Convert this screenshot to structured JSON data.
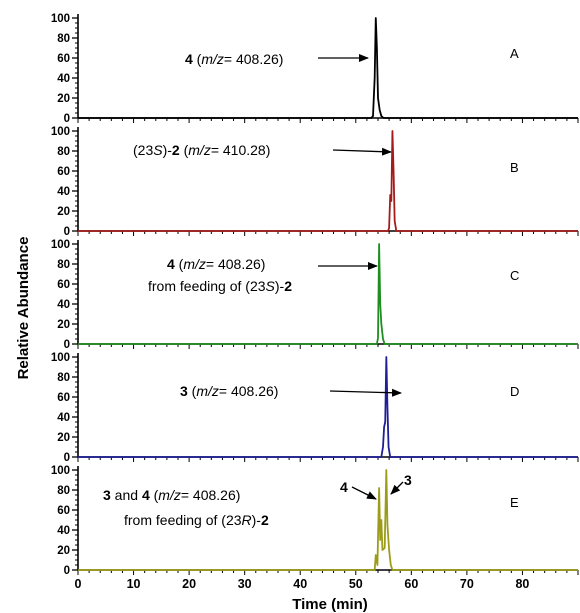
{
  "chart_data": {
    "type": "line",
    "xlabel": "Time (min)",
    "ylabel": "Relative Abundance",
    "xlim": [
      0,
      90
    ],
    "ylim": [
      0,
      100
    ],
    "x_ticks": [
      0,
      10,
      20,
      30,
      40,
      50,
      60,
      70,
      80
    ],
    "y_ticks": [
      0,
      20,
      40,
      60,
      80,
      100
    ],
    "panels": [
      {
        "letter": "A",
        "color": "#000000",
        "annotation": [
          {
            "segments": [
              {
                "t": "4",
                "bold": true
              },
              {
                "t": " ("
              },
              {
                "t": "m/z",
                "italic": true
              },
              {
                "t": "= 408.26)"
              }
            ]
          }
        ],
        "points": [
          [
            0,
            0
          ],
          [
            52.8,
            0
          ],
          [
            53.1,
            2
          ],
          [
            53.4,
            40
          ],
          [
            53.6,
            100
          ],
          [
            53.8,
            70
          ],
          [
            54.0,
            20
          ],
          [
            54.3,
            8
          ],
          [
            54.6,
            2
          ],
          [
            55.0,
            0
          ],
          [
            90,
            0
          ]
        ]
      },
      {
        "letter": "B",
        "color": "#A31B1B",
        "annotation": [
          {
            "segments": [
              {
                "t": "(23"
              },
              {
                "t": "S",
                "italic": true
              },
              {
                "t": ")-"
              },
              {
                "t": "2",
                "bold": true
              },
              {
                "t": " ("
              },
              {
                "t": "m/z",
                "italic": true
              },
              {
                "t": "= 410.28)"
              }
            ]
          }
        ],
        "points": [
          [
            0,
            0
          ],
          [
            55.8,
            0
          ],
          [
            56.0,
            3
          ],
          [
            56.2,
            36
          ],
          [
            56.4,
            30
          ],
          [
            56.6,
            100
          ],
          [
            56.8,
            60
          ],
          [
            57.0,
            10
          ],
          [
            57.3,
            0
          ],
          [
            90,
            0
          ]
        ]
      },
      {
        "letter": "C",
        "color": "#1E8E1E",
        "annotation": [
          {
            "segments": [
              {
                "t": "4",
                "bold": true
              },
              {
                "t": " ("
              },
              {
                "t": "m/z",
                "italic": true
              },
              {
                "t": "= 408.26)"
              }
            ]
          },
          {
            "segments": [
              {
                "t": "from feeding of (23"
              },
              {
                "t": "S",
                "italic": true
              },
              {
                "t": ")-"
              },
              {
                "t": "2",
                "bold": true
              }
            ]
          }
        ],
        "points": [
          [
            0,
            0
          ],
          [
            53.8,
            0
          ],
          [
            54.0,
            6
          ],
          [
            54.2,
            100
          ],
          [
            54.4,
            40
          ],
          [
            54.6,
            20
          ],
          [
            54.9,
            5
          ],
          [
            55.2,
            0
          ],
          [
            90,
            0
          ]
        ]
      },
      {
        "letter": "D",
        "color": "#1E1E96",
        "annotation": [
          {
            "segments": [
              {
                "t": "3",
                "bold": true
              },
              {
                "t": " ("
              },
              {
                "t": "m/z",
                "italic": true
              },
              {
                "t": "= 408.26)"
              }
            ]
          }
        ],
        "points": [
          [
            0,
            0
          ],
          [
            54.6,
            0
          ],
          [
            54.9,
            10
          ],
          [
            55.1,
            30
          ],
          [
            55.3,
            35
          ],
          [
            55.5,
            100
          ],
          [
            55.7,
            50
          ],
          [
            55.9,
            10
          ],
          [
            56.2,
            0
          ],
          [
            90,
            0
          ]
        ]
      },
      {
        "letter": "E",
        "color": "#9C9C1A",
        "annotation": [
          {
            "segments": [
              {
                "t": "3",
                "bold": true
              },
              {
                "t": " and "
              },
              {
                "t": "4",
                "bold": true
              },
              {
                "t": " ("
              },
              {
                "t": "m/z",
                "italic": true
              },
              {
                "t": "= 408.26)"
              }
            ]
          },
          {
            "segments": [
              {
                "t": "from feeding of (23"
              },
              {
                "t": "R",
                "italic": true
              },
              {
                "t": ")-"
              },
              {
                "t": "2",
                "bold": true
              }
            ]
          }
        ],
        "peak_labels": [
          "4",
          "3"
        ],
        "points": [
          [
            0,
            0
          ],
          [
            53.4,
            0
          ],
          [
            53.6,
            15
          ],
          [
            53.9,
            5
          ],
          [
            54.2,
            82
          ],
          [
            54.4,
            30
          ],
          [
            54.6,
            50
          ],
          [
            54.8,
            20
          ],
          [
            55.2,
            22
          ],
          [
            55.5,
            100
          ],
          [
            55.7,
            45
          ],
          [
            56.0,
            20
          ],
          [
            56.3,
            5
          ],
          [
            56.6,
            0
          ],
          [
            90,
            0
          ]
        ]
      }
    ]
  }
}
